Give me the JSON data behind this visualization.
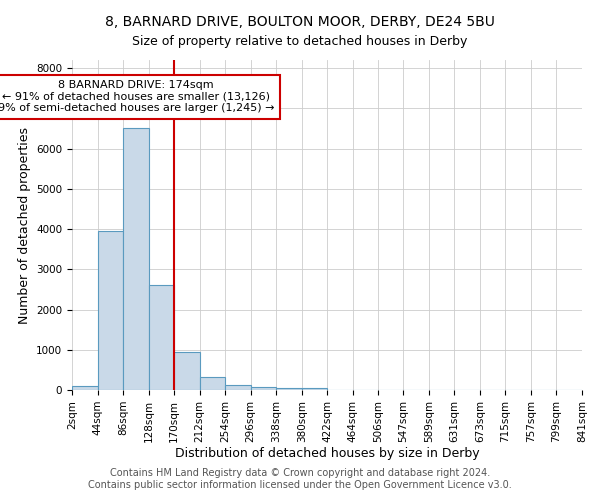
{
  "title": "8, BARNARD DRIVE, BOULTON MOOR, DERBY, DE24 5BU",
  "subtitle": "Size of property relative to detached houses in Derby",
  "xlabel": "Distribution of detached houses by size in Derby",
  "ylabel": "Number of detached properties",
  "footnote1": "Contains HM Land Registry data © Crown copyright and database right 2024.",
  "footnote2": "Contains public sector information licensed under the Open Government Licence v3.0.",
  "annotation_line1": "8 BARNARD DRIVE: 174sqm",
  "annotation_line2": "← 91% of detached houses are smaller (13,126)",
  "annotation_line3": "9% of semi-detached houses are larger (1,245) →",
  "bin_edges": [
    2,
    44,
    86,
    128,
    170,
    212,
    254,
    296,
    338,
    380,
    422,
    464,
    506,
    547,
    589,
    631,
    673,
    715,
    757,
    799,
    841
  ],
  "bar_heights": [
    100,
    3950,
    6500,
    2600,
    950,
    320,
    120,
    80,
    60,
    60,
    0,
    0,
    0,
    0,
    0,
    0,
    0,
    0,
    0,
    0
  ],
  "bar_color": "#c9d9e8",
  "bar_edge_color": "#5a9abf",
  "vline_x": 170,
  "vline_color": "#cc0000",
  "annotation_box_color": "#cc0000",
  "ylim": [
    0,
    8200
  ],
  "yticks": [
    0,
    1000,
    2000,
    3000,
    4000,
    5000,
    6000,
    7000,
    8000
  ],
  "grid_color": "#cccccc",
  "background_color": "#ffffff",
  "title_fontsize": 10,
  "subtitle_fontsize": 9,
  "axis_label_fontsize": 9,
  "tick_fontsize": 7.5,
  "annotation_fontsize": 8,
  "footnote_fontsize": 7
}
